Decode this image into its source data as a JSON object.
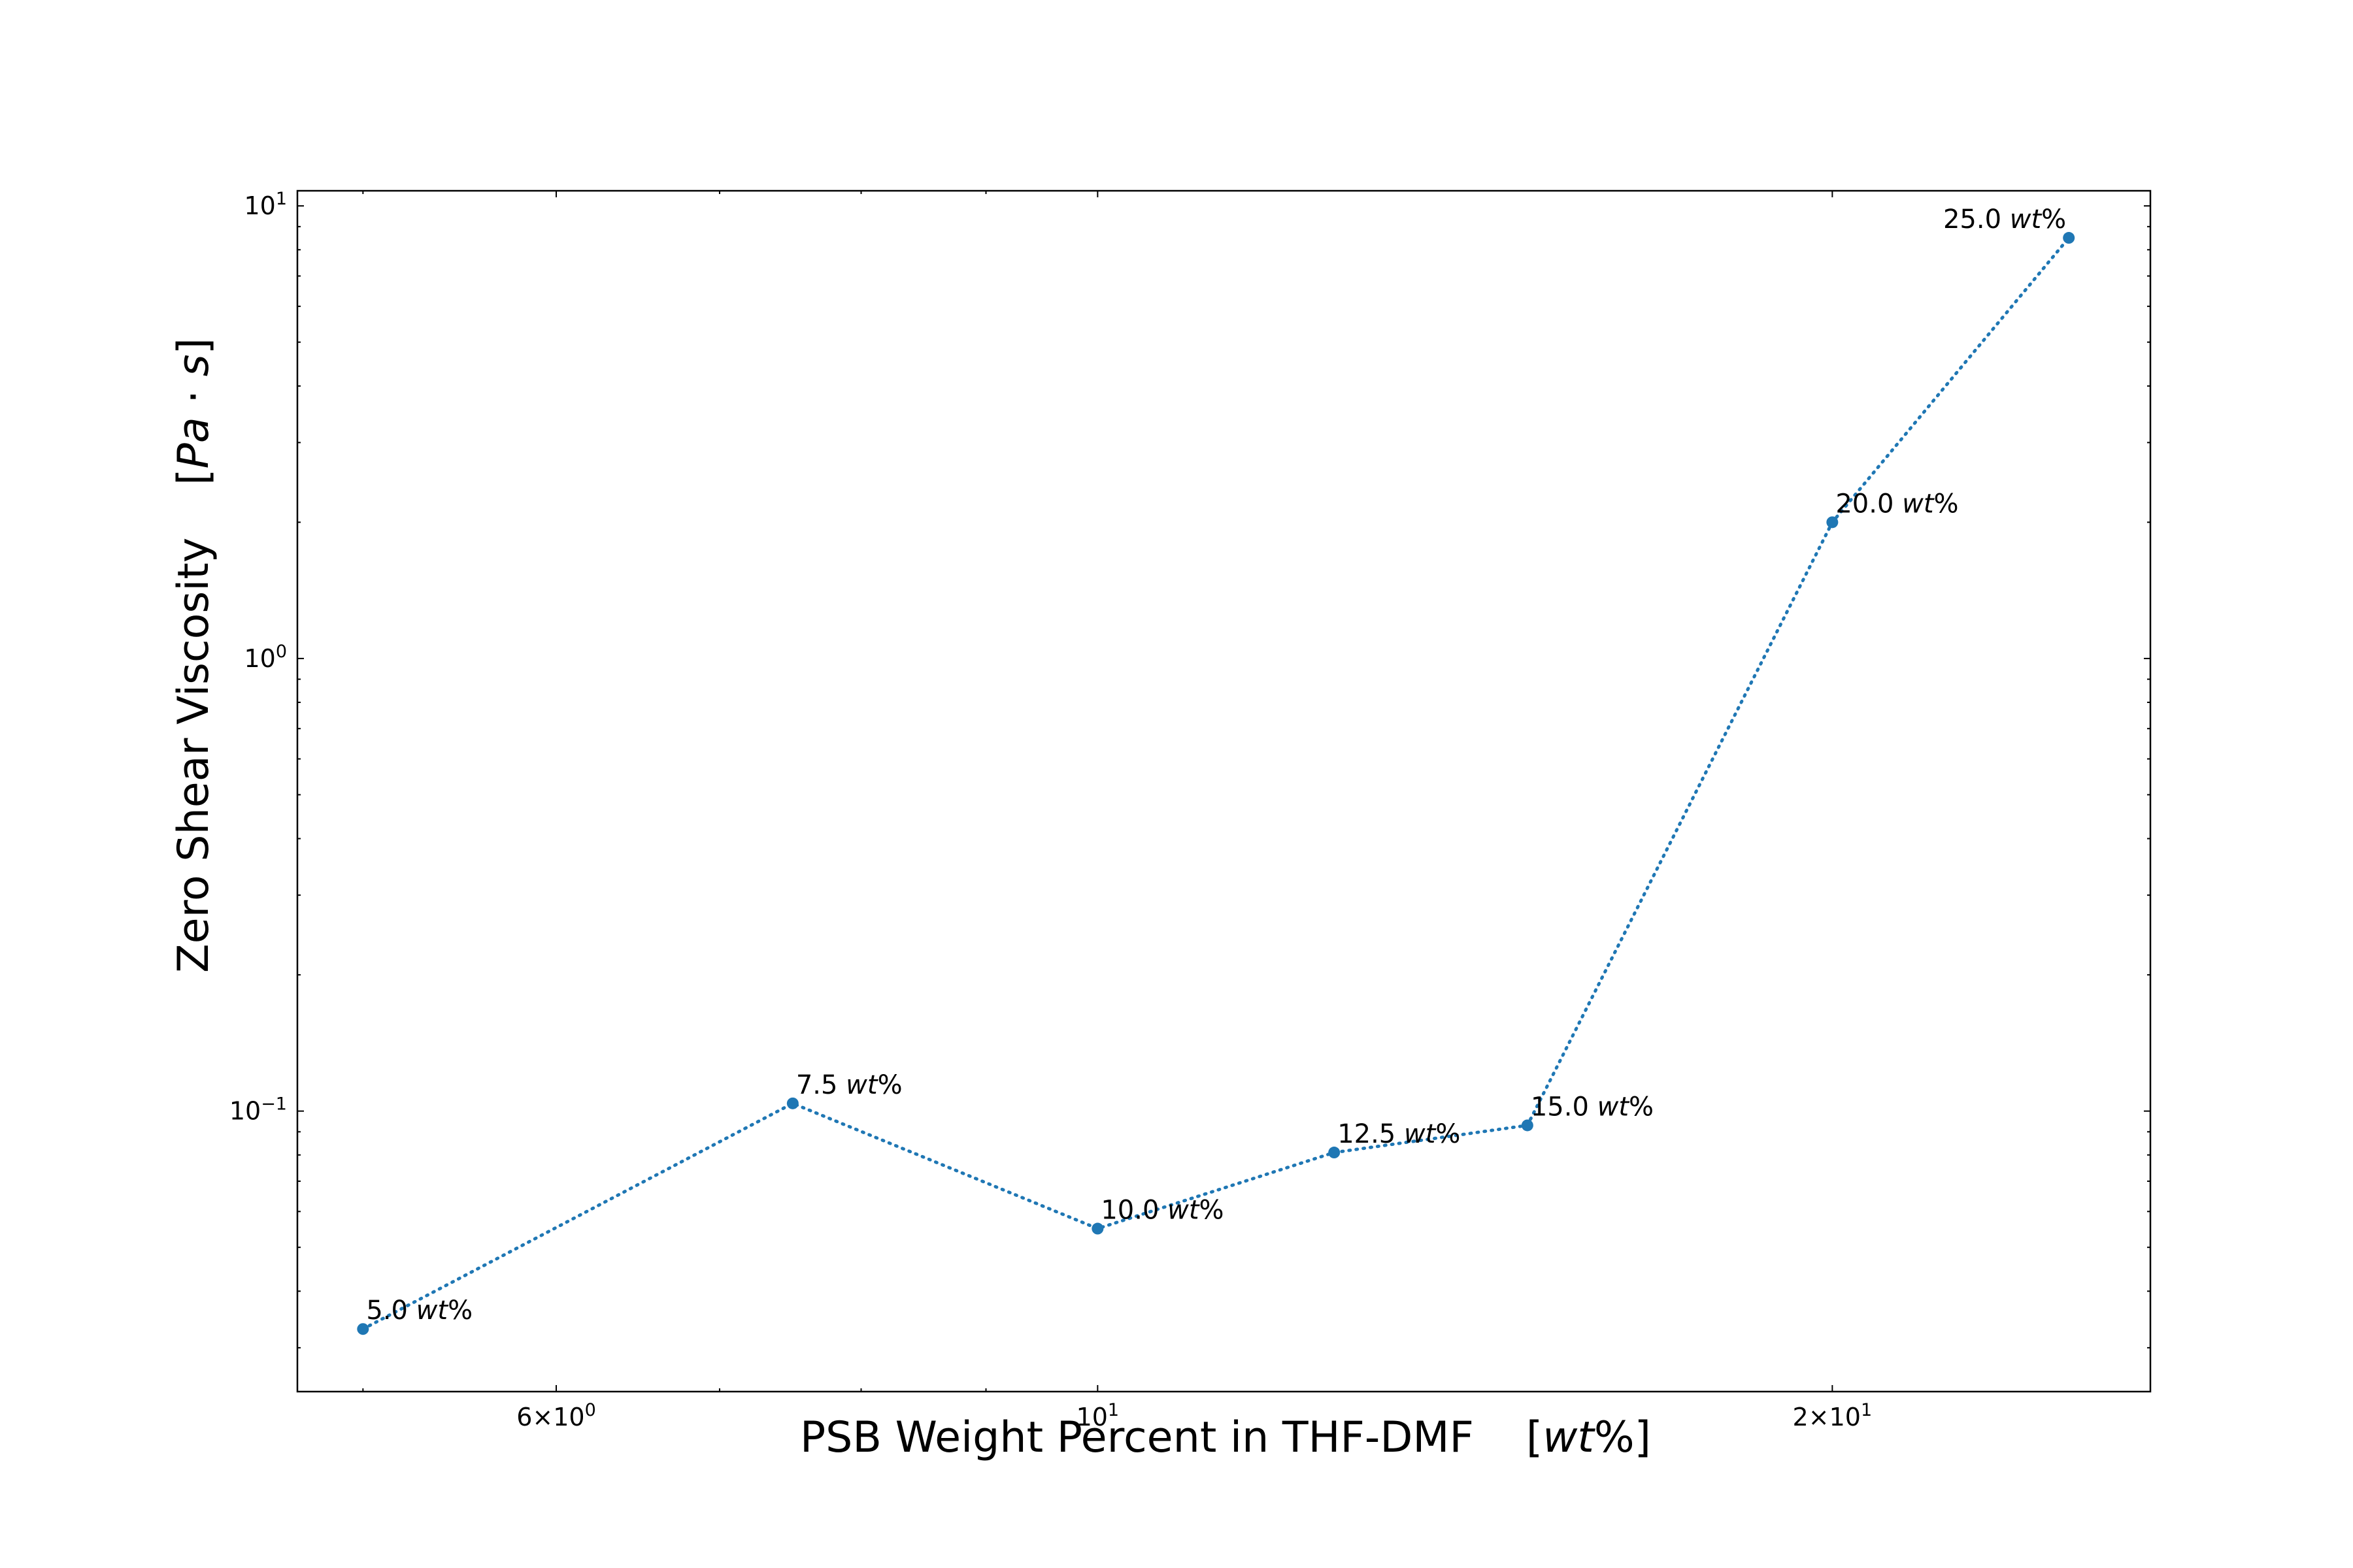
{
  "chart_data": {
    "type": "line",
    "xscale": "log",
    "yscale": "log",
    "xlim": [
      4.7,
      27.0
    ],
    "ylim": [
      0.024,
      10.8
    ],
    "xlabel": {
      "main": "PSB Weight Percent in THF-DMF",
      "unit_open": "[",
      "unit_italic": "wt",
      "unit_close": "%]"
    },
    "ylabel": {
      "main": "Zero Shear Viscosity",
      "unit_open": "[",
      "unit_italic": "Pa",
      "unit_mid": " · ",
      "unit_italic2": "s",
      "unit_close": "]"
    },
    "x_ticks": [
      {
        "value": 6,
        "mantissa": "6",
        "times": "×",
        "base": "10",
        "exp": "0"
      },
      {
        "value": 10,
        "mantissa": "",
        "times": "",
        "base": "10",
        "exp": "1"
      },
      {
        "value": 20,
        "mantissa": "2",
        "times": "×",
        "base": "10",
        "exp": "1"
      }
    ],
    "y_ticks": [
      {
        "value": 0.1,
        "base": "10",
        "exp": "−1"
      },
      {
        "value": 1,
        "base": "10",
        "exp": "0"
      },
      {
        "value": 10,
        "base": "10",
        "exp": "1"
      }
    ],
    "line_style": "dotted",
    "marker": "circle",
    "color": "#1f77b4",
    "grid": false,
    "series": [
      {
        "x": [
          5.0,
          7.5,
          10.0,
          12.5,
          15.0,
          20.0,
          25.0
        ],
        "y": [
          0.033,
          0.104,
          0.055,
          0.081,
          0.093,
          2.0,
          8.5
        ],
        "labels": [
          {
            "num": "5.0",
            "unit_italic": "wt",
            "unit_rest": "%",
            "placement": "right"
          },
          {
            "num": "7.5",
            "unit_italic": "wt",
            "unit_rest": "%",
            "placement": "right"
          },
          {
            "num": "10.0",
            "unit_italic": "wt",
            "unit_rest": "%",
            "placement": "right"
          },
          {
            "num": "12.5",
            "unit_italic": "wt",
            "unit_rest": "%",
            "placement": "right"
          },
          {
            "num": "15.0",
            "unit_italic": "wt",
            "unit_rest": "%",
            "placement": "right"
          },
          {
            "num": "20.0",
            "unit_italic": "wt",
            "unit_rest": "%",
            "placement": "right"
          },
          {
            "num": "25.0",
            "unit_italic": "wt",
            "unit_rest": "%",
            "placement": "left"
          }
        ]
      }
    ]
  }
}
